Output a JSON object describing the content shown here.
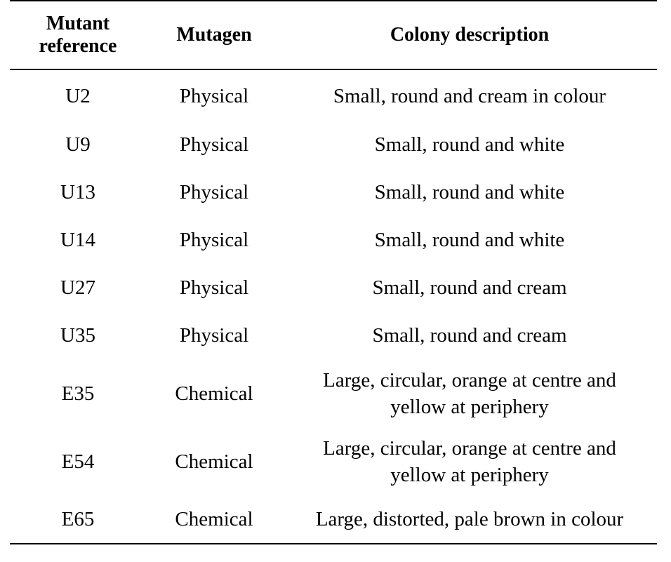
{
  "table": {
    "headers": {
      "mutant_reference": "Mutant\nreference",
      "mutagen": "Mutagen",
      "colony_description": "Colony description"
    },
    "rows": [
      {
        "mutant": "U2",
        "mutagen": "Physical",
        "description": "Small, round and cream in colour"
      },
      {
        "mutant": "U9",
        "mutagen": "Physical",
        "description": "Small, round and white"
      },
      {
        "mutant": "U13",
        "mutagen": "Physical",
        "description": "Small, round and white"
      },
      {
        "mutant": "U14",
        "mutagen": "Physical",
        "description": "Small, round and white"
      },
      {
        "mutant": "U27",
        "mutagen": "Physical",
        "description": "Small, round and cream"
      },
      {
        "mutant": "U35",
        "mutagen": "Physical",
        "description": "Small, round and cream"
      },
      {
        "mutant": "E35",
        "mutagen": "Chemical",
        "description": "Large, circular, orange at centre and\nyellow at periphery"
      },
      {
        "mutant": "E54",
        "mutagen": "Chemical",
        "description": "Large, circular, orange at centre and\nyellow at periphery"
      },
      {
        "mutant": "E65",
        "mutagen": "Chemical",
        "description": "Large, distorted, pale brown in colour"
      }
    ]
  }
}
